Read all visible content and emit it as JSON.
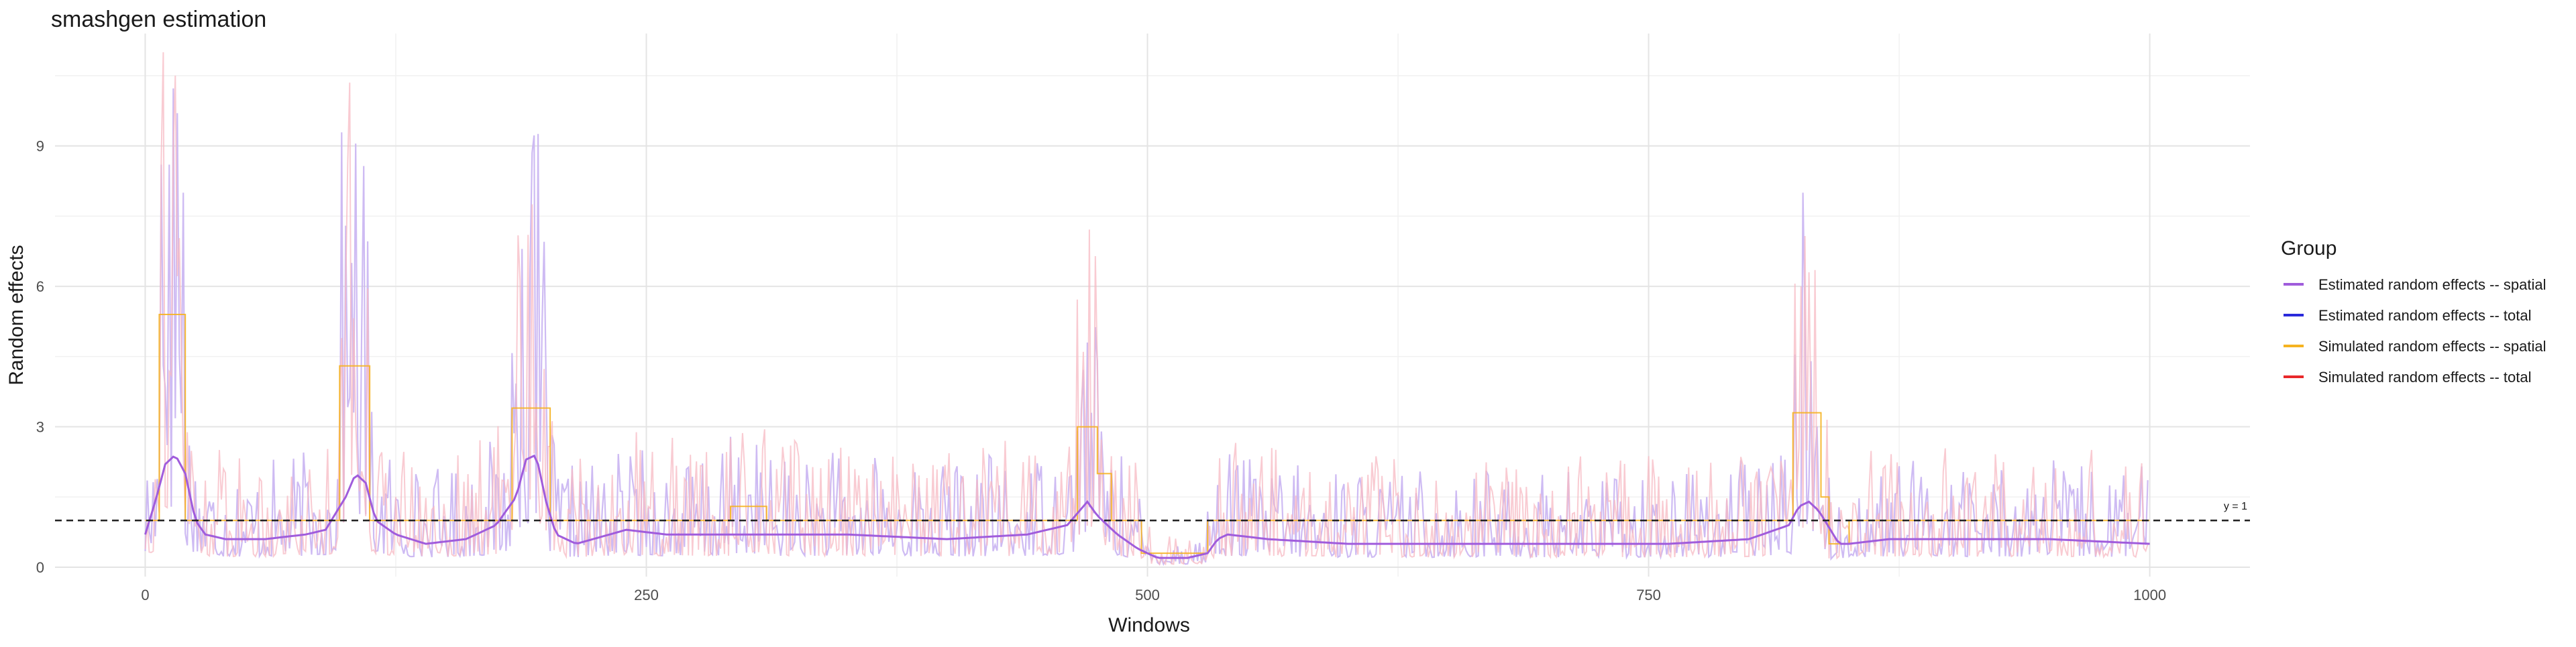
{
  "chart_data": {
    "type": "line",
    "title": "smashgen estimation",
    "xlabel": "Windows",
    "ylabel": "Random effects",
    "xlim": [
      -45,
      1050
    ],
    "ylim": [
      -0.2,
      11.4
    ],
    "x_ticks": [
      0,
      250,
      500,
      750,
      1000
    ],
    "x_tick_labels": [
      "0",
      "250",
      "500",
      "750",
      "1000"
    ],
    "y_ticks": [
      0,
      3,
      6,
      9
    ],
    "y_tick_labels": [
      "0",
      "3",
      "6",
      "9"
    ],
    "grid": true,
    "legend": {
      "title": "Group",
      "placement": "right",
      "entries": [
        {
          "label": "Estimated random effects -- spatial",
          "color": "#a05cdc"
        },
        {
          "label": "Estimated random effects -- total",
          "color": "#2a2adb"
        },
        {
          "label": "Simulated random effects -- spatial",
          "color": "#f5b320"
        },
        {
          "label": "Simulated random effects -- total",
          "color": "#e8282a"
        }
      ]
    },
    "reference_line": {
      "y": 1,
      "label": "y = 1",
      "style": "dashed",
      "color": "#222222"
    },
    "n_points": 1000,
    "series": [
      {
        "name": "Estimated random effects -- spatial",
        "color": "#a05cdc",
        "style": "smooth",
        "x": [
          0,
          5,
          10,
          15,
          20,
          25,
          30,
          40,
          60,
          80,
          90,
          100,
          105,
          110,
          115,
          125,
          140,
          160,
          175,
          185,
          190,
          195,
          200,
          205,
          215,
          240,
          260,
          300,
          350,
          400,
          440,
          460,
          470,
          475,
          485,
          495,
          505,
          520,
          530,
          535,
          540,
          560,
          600,
          650,
          700,
          760,
          800,
          820,
          825,
          830,
          835,
          845,
          850,
          870,
          900,
          950,
          1000
        ],
        "y": [
          0.7,
          1.4,
          2.2,
          2.4,
          2.0,
          1.0,
          0.7,
          0.6,
          0.6,
          0.7,
          0.8,
          1.5,
          2.0,
          1.8,
          1.0,
          0.7,
          0.5,
          0.6,
          0.9,
          1.5,
          2.3,
          2.4,
          1.4,
          0.7,
          0.5,
          0.8,
          0.7,
          0.7,
          0.7,
          0.6,
          0.7,
          0.9,
          1.4,
          1.1,
          0.7,
          0.4,
          0.2,
          0.2,
          0.3,
          0.6,
          0.7,
          0.6,
          0.5,
          0.5,
          0.5,
          0.5,
          0.6,
          0.9,
          1.3,
          1.4,
          1.2,
          0.5,
          0.5,
          0.6,
          0.6,
          0.6,
          0.5
        ]
      },
      {
        "name": "Simulated random effects -- spatial",
        "color": "#f5b320",
        "style": "step",
        "segments": [
          {
            "x0": 0,
            "x1": 7,
            "y": 1.0
          },
          {
            "x0": 7,
            "x1": 20,
            "y": 5.4
          },
          {
            "x0": 20,
            "x1": 97,
            "y": 1.0
          },
          {
            "x0": 97,
            "x1": 112,
            "y": 4.3
          },
          {
            "x0": 112,
            "x1": 183,
            "y": 1.0
          },
          {
            "x0": 183,
            "x1": 202,
            "y": 3.4
          },
          {
            "x0": 202,
            "x1": 292,
            "y": 1.0
          },
          {
            "x0": 292,
            "x1": 310,
            "y": 1.3
          },
          {
            "x0": 310,
            "x1": 465,
            "y": 1.0
          },
          {
            "x0": 465,
            "x1": 475,
            "y": 3.0
          },
          {
            "x0": 475,
            "x1": 482,
            "y": 2.0
          },
          {
            "x0": 482,
            "x1": 497,
            "y": 1.0
          },
          {
            "x0": 497,
            "x1": 530,
            "y": 0.3
          },
          {
            "x0": 530,
            "x1": 822,
            "y": 1.0
          },
          {
            "x0": 822,
            "x1": 836,
            "y": 3.3
          },
          {
            "x0": 836,
            "x1": 840,
            "y": 1.5
          },
          {
            "x0": 840,
            "x1": 850,
            "y": 0.5
          },
          {
            "x0": 850,
            "x1": 1000,
            "y": 1.0
          }
        ]
      },
      {
        "name": "Estimated random effects -- total",
        "color": "#c9b4f2",
        "style": "noisy",
        "peaks": [
          {
            "x": 8,
            "y": 8.6
          },
          {
            "x": 12,
            "y": 8.6
          },
          {
            "x": 16,
            "y": 9.7
          },
          {
            "x": 19,
            "y": 8.0
          },
          {
            "x": 103,
            "y": 6.5
          },
          {
            "x": 108,
            "y": 5.1
          },
          {
            "x": 188,
            "y": 6.8
          },
          {
            "x": 192,
            "y": 6.4
          },
          {
            "x": 470,
            "y": 4.8
          },
          {
            "x": 475,
            "y": 4.4
          },
          {
            "x": 827,
            "y": 8.0
          },
          {
            "x": 831,
            "y": 4.4
          }
        ]
      },
      {
        "name": "Simulated random effects -- total",
        "color": "#f7b9c3",
        "style": "noisy",
        "peaks": [
          {
            "x": 9,
            "y": 11.0
          },
          {
            "x": 15,
            "y": 10.5
          },
          {
            "x": 101,
            "y": 8.6
          },
          {
            "x": 191,
            "y": 7.1
          },
          {
            "x": 468,
            "y": 4.6
          },
          {
            "x": 826,
            "y": 6.0
          }
        ]
      }
    ]
  }
}
